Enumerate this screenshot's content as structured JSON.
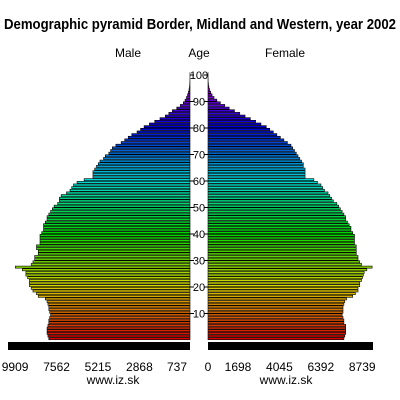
{
  "chart_data": {
    "type": "population-pyramid",
    "title": "Demographic pyramid Border, Midland and Western, year 2002",
    "left_label": "Male",
    "center_label": "Age",
    "right_label": "Female",
    "age_ticks": [
      "10",
      "20",
      "30",
      "40",
      "50",
      "60",
      "70",
      "80",
      "90",
      "100"
    ],
    "male_ticks": [
      {
        "label": "9909",
        "value": 9909
      },
      {
        "label": "7562",
        "value": 7562
      },
      {
        "label": "5215",
        "value": 5215
      },
      {
        "label": "2868",
        "value": 2868
      },
      {
        "label": "737",
        "value": 737
      }
    ],
    "female_ticks": [
      {
        "label": "0",
        "value": 0
      },
      {
        "label": "1698",
        "value": 1698
      },
      {
        "label": "4045",
        "value": 4045
      },
      {
        "label": "6392",
        "value": 6392
      },
      {
        "label": "8739",
        "value": 8739
      }
    ],
    "male_xlim": [
      0,
      10200
    ],
    "female_xlim": [
      0,
      10200
    ],
    "ages_min": 0,
    "ages_max": 100,
    "male": [
      8000,
      8050,
      8100,
      8100,
      8100,
      8050,
      8000,
      8000,
      7950,
      7900,
      7950,
      8000,
      8000,
      8050,
      8100,
      8200,
      8600,
      8700,
      8900,
      9000,
      9100,
      9100,
      9100,
      9200,
      9300,
      9300,
      9500,
      9900,
      9000,
      8900,
      8800,
      8800,
      8600,
      8600,
      8700,
      8700,
      8500,
      8500,
      8500,
      8500,
      8400,
      8300,
      8300,
      8300,
      8200,
      8100,
      8100,
      8000,
      7900,
      7800,
      7700,
      7500,
      7400,
      7400,
      7300,
      7000,
      6800,
      6700,
      6600,
      6400,
      6000,
      5500,
      5500,
      5500,
      5400,
      5300,
      5200,
      5100,
      4900,
      4800,
      4600,
      4500,
      4400,
      4200,
      3900,
      3700,
      3500,
      3300,
      3000,
      2800,
      2600,
      2300,
      2000,
      1700,
      1400,
      1200,
      1000,
      750,
      550,
      380,
      280,
      200,
      140,
      90,
      55,
      30,
      15,
      8,
      4,
      2,
      1
    ],
    "female": [
      7700,
      7750,
      7800,
      7800,
      7800,
      7800,
      7700,
      7700,
      7650,
      7600,
      7650,
      7650,
      7650,
      7700,
      7750,
      7850,
      8200,
      8350,
      8500,
      8500,
      8600,
      8600,
      8700,
      8750,
      8800,
      8850,
      9000,
      9300,
      8700,
      8600,
      8500,
      8500,
      8400,
      8400,
      8400,
      8400,
      8300,
      8300,
      8300,
      8300,
      8200,
      8100,
      8100,
      8000,
      7900,
      7800,
      7800,
      7700,
      7600,
      7500,
      7400,
      7300,
      7100,
      7000,
      6900,
      6800,
      6600,
      6500,
      6400,
      6200,
      6000,
      5500,
      5500,
      5500,
      5500,
      5400,
      5400,
      5300,
      5200,
      5100,
      5000,
      4900,
      4800,
      4700,
      4500,
      4300,
      4100,
      3900,
      3700,
      3500,
      3300,
      3000,
      2700,
      2400,
      2100,
      1800,
      1500,
      1200,
      950,
      700,
      500,
      340,
      230,
      150,
      90,
      50,
      25,
      12,
      6,
      3,
      1
    ],
    "center_bar_color": "#000000",
    "background": "#ffffff"
  },
  "footer": {
    "left_watermark": "www.iz.sk",
    "right_watermark": "www.iz.sk"
  }
}
